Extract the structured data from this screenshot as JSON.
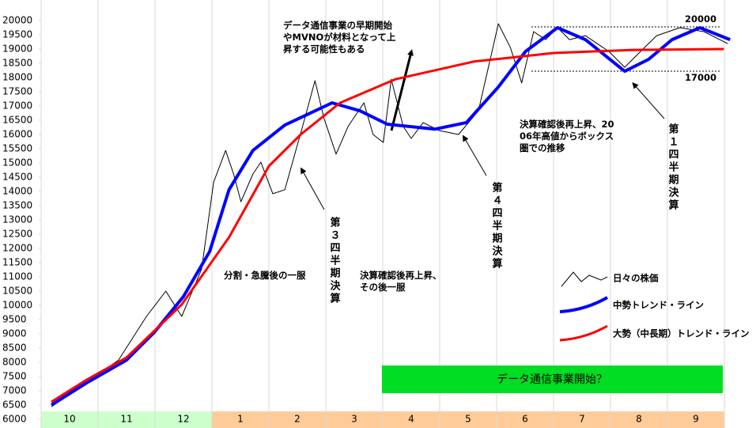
{
  "chart_data": {
    "type": "line",
    "categories": [
      "10",
      "11",
      "12",
      "1",
      "2",
      "3",
      "4",
      "5",
      "6",
      "7",
      "8",
      "9"
    ],
    "category_colors": [
      "#ccffcc",
      "#ccffcc",
      "#ccffcc",
      "#ffcc99",
      "#ffcc99",
      "#ffcc99",
      "#ffcc99",
      "#ffcc99",
      "#ffcc99",
      "#ffcc99",
      "#ffcc99",
      "#ffcc99"
    ],
    "ylim": [
      6000,
      20000
    ],
    "yticks": [
      6000,
      6500,
      7000,
      7500,
      8000,
      8500,
      9000,
      9500,
      10000,
      10500,
      11000,
      11500,
      12000,
      12500,
      13000,
      13500,
      14000,
      14500,
      15000,
      15500,
      16000,
      16500,
      17000,
      17500,
      18000,
      18500,
      19000,
      19500,
      20000
    ],
    "xlim": [
      0,
      12.4
    ],
    "series": [
      {
        "name": "日々の株価",
        "color": "#000000",
        "line_width": 1,
        "x": [
          0.18,
          1.36,
          1.85,
          2.19,
          2.47,
          2.82,
          3.03,
          3.24,
          3.38,
          3.51,
          3.72,
          3.86,
          4.07,
          4.28,
          4.63,
          4.81,
          4.97,
          5.18,
          5.39,
          5.67,
          5.83,
          6.01,
          6.15,
          6.36,
          6.5,
          6.71,
          6.99,
          7.33,
          7.68,
          8.03,
          8.24,
          8.44,
          8.65,
          8.86,
          9.07,
          9.28,
          9.56,
          9.97,
          10.25,
          10.53,
          10.81,
          11.22,
          11.64,
          12.06
        ],
        "values": [
          6440,
          8080,
          9610,
          10500,
          9610,
          11280,
          14330,
          15440,
          14610,
          13640,
          14610,
          15030,
          13920,
          14060,
          16560,
          17890,
          16560,
          15310,
          16280,
          17110,
          16000,
          15720,
          17940,
          16280,
          15860,
          16420,
          16140,
          16000,
          16830,
          19890,
          19060,
          17810,
          19610,
          19330,
          19750,
          19330,
          19470,
          18920,
          18360,
          18920,
          19470,
          19750,
          19610,
          19190
        ]
      },
      {
        "name": "中勢トレンド・ライン",
        "color": "#0000ff",
        "line_width": 4,
        "x": [
          0.18,
          0.8,
          1.5,
          1.99,
          2.5,
          2.96,
          3.3,
          3.72,
          4.28,
          5.11,
          5.6,
          6.08,
          6.92,
          7.47,
          8.03,
          8.51,
          9.07,
          9.56,
          10.25,
          10.67,
          11.08,
          11.57,
          12.1
        ],
        "values": [
          6500,
          7280,
          8080,
          9060,
          10310,
          11890,
          14060,
          15440,
          16330,
          17110,
          16830,
          16360,
          16190,
          16420,
          17670,
          18920,
          19750,
          19330,
          18220,
          18640,
          19330,
          19750,
          19330
        ]
      },
      {
        "name": "大勢（中長期）トレンド・ライン",
        "color": "#ff0000",
        "line_width": 3,
        "x": [
          0.18,
          0.8,
          1.5,
          2.47,
          3.3,
          4.0,
          4.56,
          5.25,
          6.22,
          7.6,
          9.0,
          10.39,
          11.99
        ],
        "values": [
          6610,
          7390,
          8170,
          10030,
          12390,
          14890,
          16000,
          17110,
          17940,
          18560,
          18860,
          18970,
          19000
        ]
      }
    ],
    "annotations": [
      {
        "lines": [
          "データ通信事業の早期開始",
          "やMVNOが材料となって上",
          "昇する可能性もある"
        ]
      },
      {
        "lines": [
          "分割・急騰後の一服"
        ]
      },
      {
        "lines": [
          "決算確認後再上昇、",
          "その後一服"
        ]
      },
      {
        "lines": [
          "決算確認後再上昇、20",
          "06年高値からボックス",
          "圏での推移"
        ]
      },
      {
        "vertical": "第３四半期決算"
      },
      {
        "vertical": "第４四半期決算"
      },
      {
        "vertical": "第１四半期決算"
      },
      {
        "lines": [
          "20000"
        ]
      },
      {
        "lines": [
          "17000"
        ]
      }
    ],
    "banner": "データ通信事業開始？",
    "banner_color": "#00dd22"
  }
}
